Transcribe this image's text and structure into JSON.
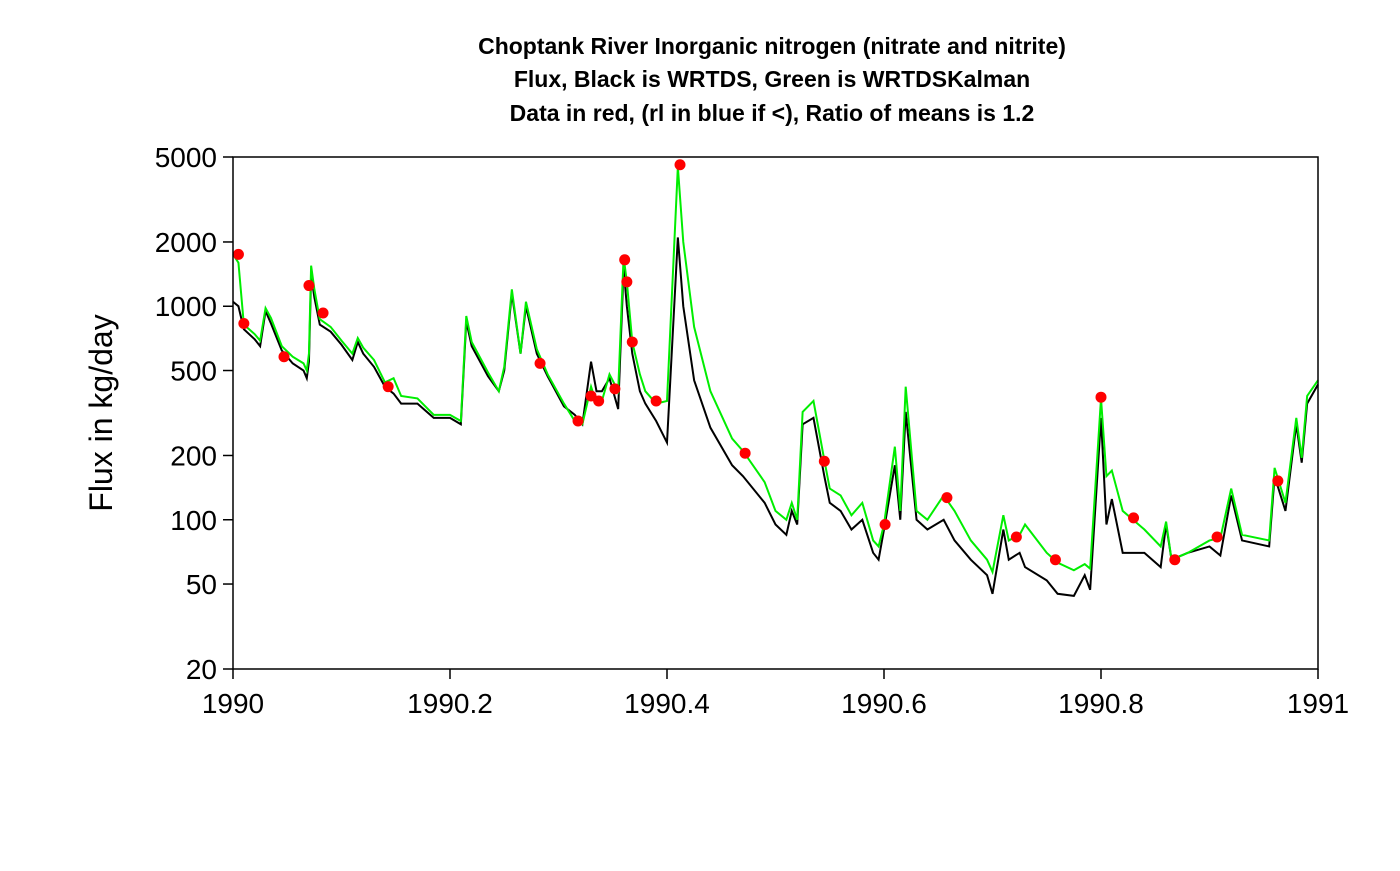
{
  "chart_data": {
    "type": "line",
    "title": [
      "Choptank River Inorganic nitrogen (nitrate and nitrite)",
      "Flux, Black is WRTDS, Green is WRTDSKalman",
      "Data in red, (rl in blue if <), Ratio of means is 1.2"
    ],
    "ylabel": "Flux in kg/day",
    "log_y": true,
    "xlim": [
      1990,
      1991
    ],
    "xticks": [
      1990,
      1990.2,
      1990.4,
      1990.6,
      1990.8,
      1991
    ],
    "ylim": [
      20,
      5000
    ],
    "yticks": [
      20,
      50,
      100,
      200,
      500,
      1000,
      2000,
      5000
    ],
    "x": [
      1990.0,
      1990.005,
      1990.01,
      1990.02,
      1990.025,
      1990.03,
      1990.035,
      1990.045,
      1990.055,
      1990.065,
      1990.068,
      1990.07,
      1990.072,
      1990.075,
      1990.08,
      1990.09,
      1990.1,
      1990.11,
      1990.115,
      1990.12,
      1990.13,
      1990.14,
      1990.148,
      1990.155,
      1990.17,
      1990.185,
      1990.2,
      1990.21,
      1990.215,
      1990.22,
      1990.235,
      1990.245,
      1990.25,
      1990.257,
      1990.265,
      1990.27,
      1990.28,
      1990.29,
      1990.305,
      1990.315,
      1990.322,
      1990.33,
      1990.335,
      1990.34,
      1990.347,
      1990.355,
      1990.36,
      1990.363,
      1990.368,
      1990.375,
      1990.38,
      1990.39,
      1990.4,
      1990.41,
      1990.415,
      1990.425,
      1990.44,
      1990.46,
      1990.47,
      1990.49,
      1990.5,
      1990.51,
      1990.515,
      1990.52,
      1990.525,
      1990.535,
      1990.545,
      1990.55,
      1990.56,
      1990.57,
      1990.58,
      1990.59,
      1990.595,
      1990.6,
      1990.61,
      1990.615,
      1990.62,
      1990.63,
      1990.64,
      1990.655,
      1990.665,
      1990.68,
      1990.695,
      1990.7,
      1990.71,
      1990.715,
      1990.725,
      1990.73,
      1990.75,
      1990.76,
      1990.775,
      1990.785,
      1990.79,
      1990.8,
      1990.805,
      1990.81,
      1990.82,
      1990.84,
      1990.855,
      1990.86,
      1990.865,
      1990.88,
      1990.9,
      1990.91,
      1990.92,
      1990.93,
      1990.955,
      1990.96,
      1990.97,
      1990.98,
      1990.985,
      1990.99,
      1991.0
    ],
    "series": [
      {
        "color": "#000000",
        "values": [
          1050,
          1000,
          780,
          700,
          650,
          950,
          830,
          620,
          540,
          500,
          460,
          550,
          1400,
          1100,
          820,
          760,
          660,
          560,
          680,
          600,
          520,
          420,
          390,
          350,
          350,
          300,
          300,
          280,
          850,
          650,
          470,
          400,
          500,
          1150,
          600,
          1000,
          600,
          470,
          340,
          310,
          280,
          550,
          400,
          400,
          460,
          330,
          1500,
          1000,
          600,
          400,
          350,
          290,
          230,
          2100,
          1000,
          450,
          270,
          180,
          160,
          120,
          95,
          85,
          110,
          95,
          280,
          300,
          160,
          120,
          110,
          90,
          100,
          70,
          65,
          90,
          180,
          100,
          320,
          100,
          90,
          100,
          80,
          65,
          55,
          45,
          90,
          65,
          70,
          60,
          52,
          45,
          44,
          55,
          47,
          300,
          95,
          125,
          70,
          70,
          60,
          95,
          65,
          70,
          75,
          68,
          130,
          80,
          75,
          160,
          110,
          280,
          185,
          350,
          430
        ]
      },
      {
        "color": "#00ee00",
        "values": [
          1750,
          1600,
          820,
          740,
          690,
          980,
          880,
          650,
          580,
          540,
          500,
          600,
          1550,
          1200,
          870,
          800,
          690,
          600,
          710,
          640,
          560,
          440,
          460,
          380,
          370,
          310,
          310,
          290,
          900,
          680,
          490,
          400,
          520,
          1200,
          600,
          1050,
          630,
          480,
          350,
          290,
          280,
          420,
          350,
          360,
          480,
          400,
          1700,
          1300,
          680,
          480,
          400,
          350,
          360,
          4500,
          2000,
          800,
          400,
          240,
          210,
          150,
          110,
          100,
          120,
          100,
          320,
          360,
          190,
          140,
          130,
          105,
          120,
          80,
          75,
          95,
          220,
          110,
          420,
          110,
          100,
          130,
          110,
          80,
          65,
          57,
          105,
          80,
          85,
          95,
          70,
          63,
          58,
          62,
          59,
          370,
          160,
          170,
          110,
          90,
          75,
          98,
          65,
          70,
          80,
          82,
          140,
          85,
          80,
          175,
          120,
          300,
          195,
          380,
          450
        ]
      },
      {
        "type": "scatter",
        "color": "#ff0000",
        "x": [
          1990.005,
          1990.01,
          1990.047,
          1990.07,
          1990.083,
          1990.143,
          1990.283,
          1990.318,
          1990.33,
          1990.337,
          1990.352,
          1990.361,
          1990.363,
          1990.368,
          1990.39,
          1990.412,
          1990.472,
          1990.545,
          1990.601,
          1990.658,
          1990.722,
          1990.758,
          1990.8,
          1990.83,
          1990.868,
          1990.907,
          1990.963
        ],
        "values": [
          1750,
          830,
          580,
          1250,
          930,
          420,
          540,
          290,
          380,
          360,
          410,
          1650,
          1300,
          680,
          360,
          4600,
          205,
          188,
          95,
          127,
          83,
          65,
          375,
          102,
          65,
          83,
          152
        ]
      }
    ]
  }
}
